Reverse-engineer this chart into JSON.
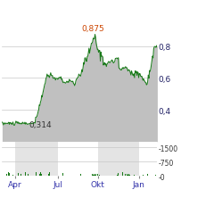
{
  "price_label_high": "0,875",
  "price_label_low": "0,314",
  "y_ticks": [
    0.4,
    0.6,
    0.8
  ],
  "y_tick_labels": [
    "0,4",
    "0,6",
    "0,8"
  ],
  "ylim": [
    0.2,
    0.96
  ],
  "x_tick_labels": [
    "Apr",
    "Jul",
    "Okt",
    "Jan"
  ],
  "line_color": "#1a7a1a",
  "fill_color": "#c0c0c0",
  "background_color": "#ffffff",
  "volume_color_up": "#1a7a1a",
  "volume_color_down": "#cc0000",
  "vol_ylim": [
    0,
    1800
  ],
  "vol_ticks": [
    0,
    750,
    1500
  ],
  "vol_tick_labels": [
    "-0",
    "-750",
    "-1500"
  ],
  "band_color": "#e4e4e4",
  "grid_color": "#c8c8c8",
  "tick_label_color": "#3333aa"
}
